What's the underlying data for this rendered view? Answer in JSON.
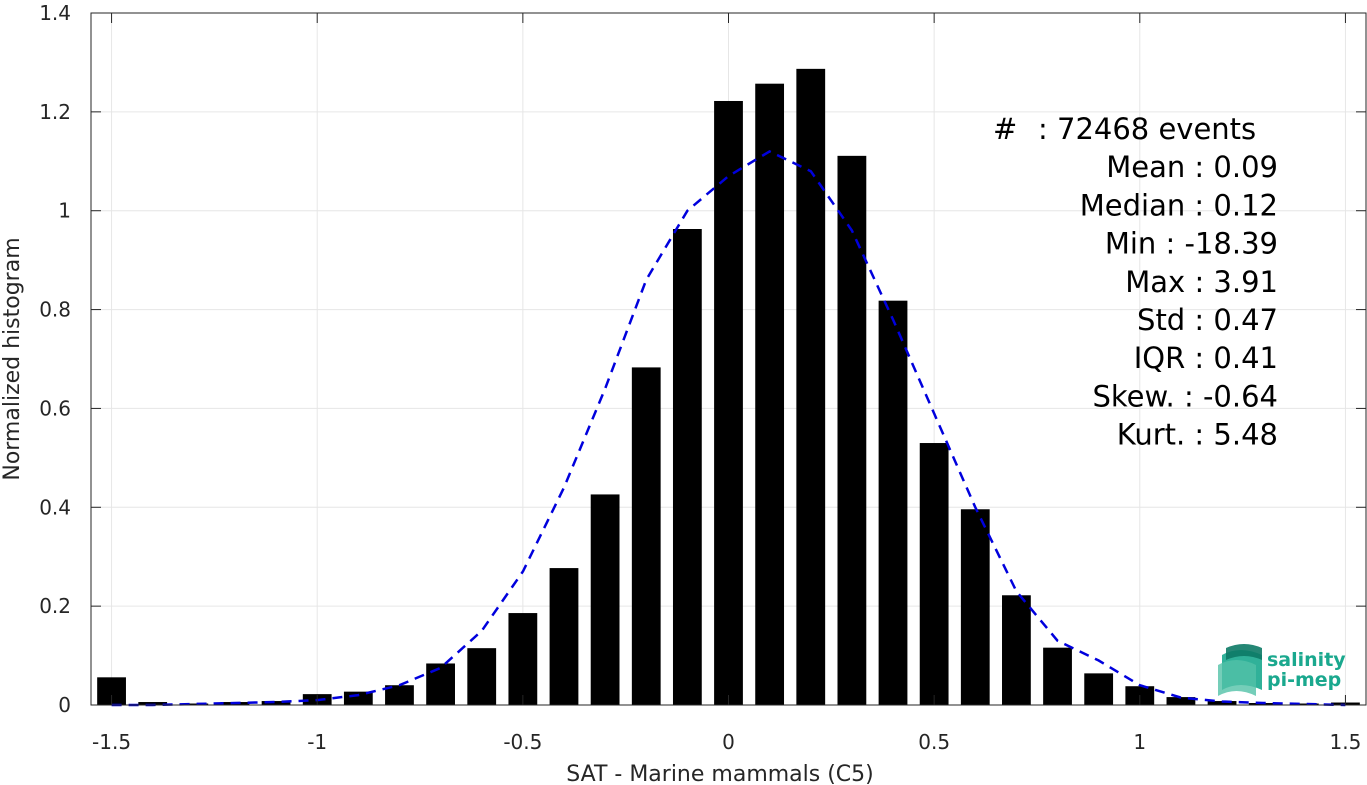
{
  "chart_data": {
    "type": "bar",
    "xlabel": "SAT - Marine mammals (C5)",
    "ylabel": "Normalized histogram",
    "xlim": [
      -1.55,
      1.55
    ],
    "ylim": [
      0,
      1.4
    ],
    "xticks": [
      -1.5,
      -1,
      -0.5,
      0,
      0.5,
      1,
      1.5
    ],
    "xtick_labels": [
      "-1.5",
      "-1",
      "-0.5",
      "0",
      "0.5",
      "1",
      "1.5"
    ],
    "yticks": [
      0,
      0.2,
      0.4,
      0.6,
      0.8,
      1,
      1.2,
      1.4
    ],
    "ytick_labels": [
      "0",
      "0.2",
      "0.4",
      "0.6",
      "0.8",
      "1",
      "1.2",
      "1.4"
    ],
    "grid": true,
    "bar_color": "#000000",
    "fit_color": "#0000dd",
    "bins": [
      -1.5,
      -1.4,
      -1.3,
      -1.2,
      -1.1,
      -1.0,
      -0.9,
      -0.8,
      -0.7,
      -0.6,
      -0.5,
      -0.4,
      -0.3,
      -0.2,
      -0.1,
      0.0,
      0.1,
      0.2,
      0.3,
      0.4,
      0.5,
      0.6,
      0.7,
      0.8,
      0.9,
      1.0,
      1.1,
      1.2,
      1.3,
      1.4,
      1.5
    ],
    "values": [
      0.056,
      0.006,
      0.003,
      0.006,
      0.008,
      0.022,
      0.027,
      0.04,
      0.084,
      0.115,
      0.186,
      0.277,
      0.426,
      0.683,
      0.963,
      1.222,
      1.257,
      1.287,
      1.111,
      0.818,
      0.53,
      0.396,
      0.222,
      0.116,
      0.064,
      0.038,
      0.016,
      0.008,
      0.004,
      0.003,
      0.005
    ],
    "fit": {
      "style": "dashed",
      "x": [
        -1.5,
        -1.4,
        -1.3,
        -1.2,
        -1.1,
        -1.0,
        -0.9,
        -0.8,
        -0.7,
        -0.6,
        -0.5,
        -0.4,
        -0.3,
        -0.2,
        -0.1,
        0.0,
        0.1,
        0.2,
        0.3,
        0.4,
        0.5,
        0.6,
        0.7,
        0.8,
        0.9,
        1.0,
        1.1,
        1.2,
        1.3,
        1.4,
        1.5
      ],
      "y": [
        0.0,
        0.0,
        0.002,
        0.004,
        0.006,
        0.01,
        0.02,
        0.04,
        0.075,
        0.15,
        0.27,
        0.44,
        0.64,
        0.86,
        1.0,
        1.07,
        1.12,
        1.08,
        0.96,
        0.78,
        0.59,
        0.4,
        0.23,
        0.13,
        0.09,
        0.04,
        0.015,
        0.007,
        0.004,
        0.002,
        0.0
      ]
    },
    "stats": [
      {
        "label": "#",
        "sep": ":",
        "value": "72468 events"
      },
      {
        "label": "Mean",
        "sep": ":",
        "value": "0.09"
      },
      {
        "label": "Median",
        "sep": ":",
        "value": "0.12"
      },
      {
        "label": "Min",
        "sep": ":",
        "value": "-18.39"
      },
      {
        "label": "Max",
        "sep": ":",
        "value": "3.91"
      },
      {
        "label": "Std",
        "sep": ":",
        "value": "0.47"
      },
      {
        "label": "IQR",
        "sep": ":",
        "value": "0.41"
      },
      {
        "label": "Skew.",
        "sep": ":",
        "value": "-0.64"
      },
      {
        "label": "Kurt.",
        "sep": ":",
        "value": "5.48"
      }
    ]
  },
  "logo": {
    "line1": "salinity",
    "line2": "pi-mep",
    "color": "#1aa88e"
  }
}
